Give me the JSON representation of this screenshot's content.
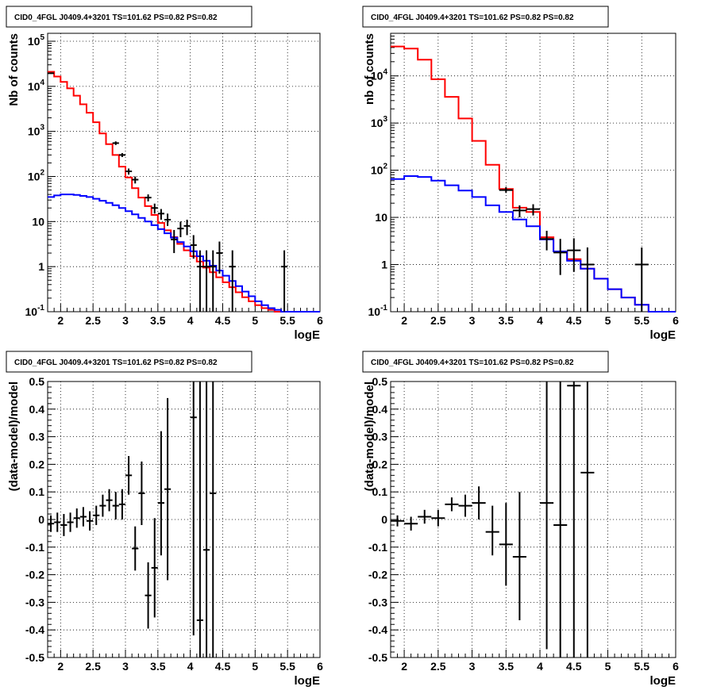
{
  "chart_data": [
    {
      "type": "histogram",
      "title": "CID0_4FGL J0409.4+3201 TS=101.62 PS=0.82 PS=0.82",
      "xlabel": "logE",
      "ylabel": "Nb of counts",
      "xlim": [
        1.8,
        6.0
      ],
      "ylim": [
        0.1,
        150000
      ],
      "yscale": "log",
      "grid": true,
      "x_ticks": [
        "2",
        "2.5",
        "3",
        "3.5",
        "4",
        "4.5",
        "5",
        "5.5",
        "6"
      ],
      "y_ticks": [
        "10^-1",
        "1",
        "10",
        "10^2",
        "10^3",
        "10^4",
        "10^5"
      ],
      "colors": {
        "data": "#000000",
        "total_model": "#ff0000",
        "component_model": "#0000ff"
      },
      "series": [
        {
          "kind": "step",
          "color": "#ff0000",
          "edges": [
            1.8,
            1.9,
            2.0,
            2.1,
            2.2,
            2.3,
            2.4,
            2.5,
            2.6,
            2.7,
            2.8,
            2.9,
            3.0,
            3.1,
            3.2,
            3.3,
            3.4,
            3.5,
            3.6,
            3.7,
            3.8,
            3.9,
            4.0,
            4.1,
            4.2,
            4.3,
            4.4,
            4.5,
            4.6,
            4.7,
            4.8,
            4.9,
            5.0,
            5.1,
            5.2,
            5.3,
            5.4,
            5.5,
            5.6,
            5.7,
            5.8,
            5.9,
            6.0
          ],
          "values": [
            21000,
            16500,
            12500,
            9000,
            6200,
            4000,
            2600,
            1600,
            900,
            520,
            300,
            165,
            95,
            55,
            34,
            22,
            14,
            9.3,
            6.4,
            4.5,
            3.2,
            2.3,
            1.7,
            1.3,
            0.95,
            0.75,
            0.58,
            0.45,
            0.35,
            0.27,
            0.21,
            0.17,
            0.14,
            0.12,
            0.11,
            0.1,
            0.1,
            0.1,
            0.1,
            0.1,
            0.1,
            0.1
          ]
        },
        {
          "kind": "step",
          "color": "#0000ff",
          "edges": [
            1.8,
            1.9,
            2.0,
            2.1,
            2.2,
            2.3,
            2.4,
            2.5,
            2.6,
            2.7,
            2.8,
            2.9,
            3.0,
            3.1,
            3.2,
            3.3,
            3.4,
            3.5,
            3.6,
            3.7,
            3.8,
            3.9,
            4.0,
            4.1,
            4.2,
            4.3,
            4.4,
            4.5,
            4.6,
            4.7,
            4.8,
            4.9,
            5.0,
            5.1,
            5.2,
            5.3,
            5.4,
            5.5,
            5.6,
            5.7,
            5.8,
            5.9,
            6.0
          ],
          "values": [
            35,
            38,
            40,
            40,
            39,
            37,
            35,
            32,
            29,
            26,
            23,
            20,
            17,
            14.5,
            12,
            10,
            8.3,
            6.8,
            5.5,
            4.4,
            3.5,
            2.8,
            2.2,
            1.7,
            1.35,
            1.05,
            0.82,
            0.63,
            0.48,
            0.37,
            0.28,
            0.22,
            0.17,
            0.14,
            0.12,
            0.11,
            0.1,
            0.1,
            0.1,
            0.1,
            0.1,
            0.1
          ]
        },
        {
          "kind": "errorbar",
          "color": "#000000",
          "points": [
            {
              "x": 1.85,
              "xerr": 0.05,
              "y": 19500,
              "ylo": 19000,
              "yhi": 20000
            },
            {
              "x": 2.85,
              "xerr": 0.05,
              "y": 550,
              "ylo": 500,
              "yhi": 600
            },
            {
              "x": 2.95,
              "xerr": 0.05,
              "y": 300,
              "ylo": 270,
              "yhi": 330
            },
            {
              "x": 3.05,
              "xerr": 0.05,
              "y": 130,
              "ylo": 110,
              "yhi": 150
            },
            {
              "x": 3.15,
              "xerr": 0.05,
              "y": 85,
              "ylo": 70,
              "yhi": 100
            },
            {
              "x": 3.35,
              "xerr": 0.05,
              "y": 34,
              "ylo": 28,
              "yhi": 40
            },
            {
              "x": 3.45,
              "xerr": 0.05,
              "y": 20,
              "ylo": 15,
              "yhi": 25
            },
            {
              "x": 3.55,
              "xerr": 0.05,
              "y": 15,
              "ylo": 11,
              "yhi": 19
            },
            {
              "x": 3.65,
              "xerr": 0.05,
              "y": 11,
              "ylo": 8,
              "yhi": 15
            },
            {
              "x": 3.75,
              "xerr": 0.05,
              "y": 4,
              "ylo": 2,
              "yhi": 6.5
            },
            {
              "x": 3.85,
              "xerr": 0.05,
              "y": 7,
              "ylo": 4.5,
              "yhi": 10
            },
            {
              "x": 3.95,
              "xerr": 0.05,
              "y": 8,
              "ylo": 5,
              "yhi": 11
            },
            {
              "x": 4.05,
              "xerr": 0.05,
              "y": 3,
              "ylo": 1.5,
              "yhi": 5
            },
            {
              "x": 4.15,
              "xerr": 0.05,
              "y": 1,
              "ylo": 0.1,
              "yhi": 2.3
            },
            {
              "x": 4.25,
              "xerr": 0.05,
              "y": 1,
              "ylo": 0.1,
              "yhi": 2.3
            },
            {
              "x": 4.35,
              "xerr": 0.05,
              "y": 1,
              "ylo": 0.1,
              "yhi": 2.3
            },
            {
              "x": 4.45,
              "xerr": 0.05,
              "y": 2,
              "ylo": 0.7,
              "yhi": 3.6
            },
            {
              "x": 4.65,
              "xerr": 0.05,
              "y": 1,
              "ylo": 0.1,
              "yhi": 2.3
            },
            {
              "x": 5.45,
              "xerr": 0.05,
              "y": 1,
              "ylo": 0.1,
              "yhi": 2.3
            }
          ]
        }
      ]
    },
    {
      "type": "histogram",
      "title": "CID0_4FGL J0409.4+3201 TS=101.62 PS=0.82 PS=0.82",
      "xlabel": "logE",
      "ylabel": "nb of counts",
      "xlim": [
        1.8,
        6.0
      ],
      "ylim": [
        0.1,
        80000
      ],
      "yscale": "log",
      "grid": true,
      "x_ticks": [
        "2",
        "2.5",
        "3",
        "3.5",
        "4",
        "4.5",
        "5",
        "5.5",
        "6"
      ],
      "y_ticks": [
        "10^-1",
        "1",
        "10",
        "10^2",
        "10^3",
        "10^4"
      ],
      "colors": {
        "data": "#000000",
        "total_model": "#ff0000",
        "component_model": "#0000ff"
      },
      "series": [
        {
          "kind": "step",
          "color": "#ff0000",
          "edges": [
            1.8,
            2.0,
            2.2,
            2.4,
            2.6,
            2.8,
            3.0,
            3.2,
            3.4,
            3.6,
            3.8,
            4.0,
            4.2,
            4.4,
            4.6,
            4.8,
            5.0,
            5.2,
            5.4,
            5.6,
            5.8,
            6.0
          ],
          "values": [
            42000,
            38000,
            22000,
            8500,
            3600,
            1250,
            420,
            130,
            40,
            16,
            13,
            3.8,
            1.9,
            1.3,
            0.82,
            0.5,
            0.3,
            0.2,
            0.14,
            0.1,
            0.1
          ]
        },
        {
          "kind": "step",
          "color": "#0000ff",
          "edges": [
            1.8,
            2.0,
            2.2,
            2.4,
            2.6,
            2.8,
            3.0,
            3.2,
            3.4,
            3.6,
            3.8,
            4.0,
            4.2,
            4.4,
            4.6,
            4.8,
            5.0,
            5.2,
            5.4,
            5.6,
            5.8,
            6.0
          ],
          "values": [
            65,
            75,
            72,
            60,
            48,
            37,
            27,
            18,
            13,
            9,
            6.5,
            3.4,
            1.9,
            1.2,
            0.82,
            0.5,
            0.3,
            0.2,
            0.14,
            0.1,
            0.1
          ]
        },
        {
          "kind": "errorbar",
          "color": "#000000",
          "points": [
            {
              "x": 3.5,
              "xerr": 0.1,
              "y": 38,
              "ylo": 33,
              "yhi": 44
            },
            {
              "x": 3.7,
              "xerr": 0.1,
              "y": 14,
              "ylo": 10,
              "yhi": 18
            },
            {
              "x": 3.9,
              "xerr": 0.1,
              "y": 15,
              "ylo": 11,
              "yhi": 19
            },
            {
              "x": 4.1,
              "xerr": 0.1,
              "y": 3.5,
              "ylo": 2,
              "yhi": 5.2
            },
            {
              "x": 4.3,
              "xerr": 0.1,
              "y": 1.8,
              "ylo": 0.6,
              "yhi": 3.5
            },
            {
              "x": 4.5,
              "xerr": 0.1,
              "y": 2,
              "ylo": 0.7,
              "yhi": 3.6
            },
            {
              "x": 4.7,
              "xerr": 0.1,
              "y": 1,
              "ylo": 0.1,
              "yhi": 2.3
            },
            {
              "x": 5.5,
              "xerr": 0.1,
              "y": 1,
              "ylo": 0.1,
              "yhi": 2.3
            }
          ]
        }
      ]
    },
    {
      "type": "scatter",
      "title": "CID0_4FGL J0409.4+3201 TS=101.62 PS=0.82 PS=0.82",
      "xlabel": "logE",
      "ylabel": "(data-model)/model",
      "xlim": [
        1.8,
        6.0
      ],
      "ylim": [
        -0.5,
        0.5
      ],
      "grid": true,
      "x_ticks": [
        "2",
        "2.5",
        "3",
        "3.5",
        "4",
        "4.5",
        "5",
        "5.5",
        "6"
      ],
      "y_ticks": [
        "-0.5",
        "-0.4",
        "-0.3",
        "-0.2",
        "-0.1",
        "0",
        "0.1",
        "0.2",
        "0.3",
        "0.4",
        "0.5"
      ],
      "series": [
        {
          "kind": "errorbar",
          "color": "#000000",
          "points": [
            {
              "x": 1.85,
              "xerr": 0.05,
              "y": -0.015,
              "ylo": -0.045,
              "yhi": 0.015
            },
            {
              "x": 1.95,
              "xerr": 0.05,
              "y": -0.01,
              "ylo": -0.045,
              "yhi": 0.025
            },
            {
              "x": 2.05,
              "xerr": 0.05,
              "y": -0.02,
              "ylo": -0.06,
              "yhi": 0.02
            },
            {
              "x": 2.15,
              "xerr": 0.05,
              "y": -0.01,
              "ylo": -0.045,
              "yhi": 0.025
            },
            {
              "x": 2.25,
              "xerr": 0.05,
              "y": 0.005,
              "ylo": -0.03,
              "yhi": 0.04
            },
            {
              "x": 2.35,
              "xerr": 0.05,
              "y": 0.01,
              "ylo": -0.025,
              "yhi": 0.045
            },
            {
              "x": 2.45,
              "xerr": 0.05,
              "y": -0.005,
              "ylo": -0.04,
              "yhi": 0.03
            },
            {
              "x": 2.55,
              "xerr": 0.05,
              "y": 0.015,
              "ylo": -0.02,
              "yhi": 0.05
            },
            {
              "x": 2.65,
              "xerr": 0.05,
              "y": 0.05,
              "ylo": 0.01,
              "yhi": 0.09
            },
            {
              "x": 2.75,
              "xerr": 0.05,
              "y": 0.07,
              "ylo": 0.03,
              "yhi": 0.11
            },
            {
              "x": 2.85,
              "xerr": 0.05,
              "y": 0.05,
              "ylo": 0.0,
              "yhi": 0.1
            },
            {
              "x": 2.95,
              "xerr": 0.05,
              "y": 0.055,
              "ylo": 0.0,
              "yhi": 0.11
            },
            {
              "x": 3.05,
              "xerr": 0.05,
              "y": 0.16,
              "ylo": 0.09,
              "yhi": 0.23
            },
            {
              "x": 3.15,
              "xerr": 0.05,
              "y": -0.105,
              "ylo": -0.185,
              "yhi": -0.025
            },
            {
              "x": 3.25,
              "xerr": 0.05,
              "y": 0.095,
              "ylo": -0.02,
              "yhi": 0.21
            },
            {
              "x": 3.35,
              "xerr": 0.05,
              "y": -0.275,
              "ylo": -0.395,
              "yhi": -0.155
            },
            {
              "x": 3.45,
              "xerr": 0.05,
              "y": -0.175,
              "ylo": -0.355,
              "yhi": 0.005
            },
            {
              "x": 3.55,
              "xerr": 0.05,
              "y": 0.06,
              "ylo": -0.13,
              "yhi": 0.32
            },
            {
              "x": 3.65,
              "xerr": 0.05,
              "y": 0.11,
              "ylo": -0.22,
              "yhi": 0.44
            },
            {
              "x": 4.05,
              "xerr": 0.05,
              "y": 0.37,
              "ylo": -0.42,
              "yhi": 0.5
            },
            {
              "x": 4.15,
              "xerr": 0.05,
              "y": -0.365,
              "ylo": -0.5,
              "yhi": 0.5
            },
            {
              "x": 4.25,
              "xerr": 0.05,
              "y": -0.11,
              "ylo": -0.5,
              "yhi": 0.5
            },
            {
              "x": 4.35,
              "xerr": 0.05,
              "y": 0.095,
              "ylo": -0.5,
              "yhi": 0.5
            }
          ]
        }
      ]
    },
    {
      "type": "scatter",
      "title": "CID0_4FGL J0409.4+3201 TS=101.62 PS=0.82 PS=0.82",
      "xlabel": "logE",
      "ylabel": "(data-model)/model",
      "xlim": [
        1.8,
        6.0
      ],
      "ylim": [
        -0.5,
        0.5
      ],
      "grid": true,
      "x_ticks": [
        "2",
        "2.5",
        "3",
        "3.5",
        "4",
        "4.5",
        "5",
        "5.5",
        "6"
      ],
      "y_ticks": [
        "-0.5",
        "-0.4",
        "-0.3",
        "-0.2",
        "-0.1",
        "0",
        "0.1",
        "0.2",
        "0.3",
        "0.4",
        "0.5"
      ],
      "series": [
        {
          "kind": "errorbar",
          "color": "#000000",
          "points": [
            {
              "x": 1.9,
              "xerr": 0.1,
              "y": -0.005,
              "ylo": -0.025,
              "yhi": 0.015
            },
            {
              "x": 2.1,
              "xerr": 0.1,
              "y": -0.015,
              "ylo": -0.04,
              "yhi": 0.01
            },
            {
              "x": 2.3,
              "xerr": 0.1,
              "y": 0.01,
              "ylo": -0.015,
              "yhi": 0.035
            },
            {
              "x": 2.5,
              "xerr": 0.1,
              "y": 0.005,
              "ylo": -0.025,
              "yhi": 0.035
            },
            {
              "x": 2.7,
              "xerr": 0.1,
              "y": 0.055,
              "ylo": 0.03,
              "yhi": 0.08
            },
            {
              "x": 2.9,
              "xerr": 0.1,
              "y": 0.05,
              "ylo": 0.01,
              "yhi": 0.09
            },
            {
              "x": 3.1,
              "xerr": 0.1,
              "y": 0.06,
              "ylo": 0.0,
              "yhi": 0.12
            },
            {
              "x": 3.3,
              "xerr": 0.1,
              "y": -0.045,
              "ylo": -0.13,
              "yhi": 0.05
            },
            {
              "x": 3.5,
              "xerr": 0.1,
              "y": -0.09,
              "ylo": -0.24,
              "yhi": 0.06
            },
            {
              "x": 3.7,
              "xerr": 0.1,
              "y": -0.135,
              "ylo": -0.365,
              "yhi": 0.1
            },
            {
              "x": 4.1,
              "xerr": 0.1,
              "y": 0.06,
              "ylo": -0.47,
              "yhi": 0.5
            },
            {
              "x": 4.3,
              "xerr": 0.1,
              "y": -0.02,
              "ylo": -0.5,
              "yhi": 0.5
            },
            {
              "x": 4.5,
              "xerr": 0.1,
              "y": 0.485,
              "ylo": -0.5,
              "yhi": 0.5
            },
            {
              "x": 4.7,
              "xerr": 0.1,
              "y": 0.17,
              "ylo": -0.5,
              "yhi": 0.5
            }
          ]
        }
      ]
    }
  ]
}
